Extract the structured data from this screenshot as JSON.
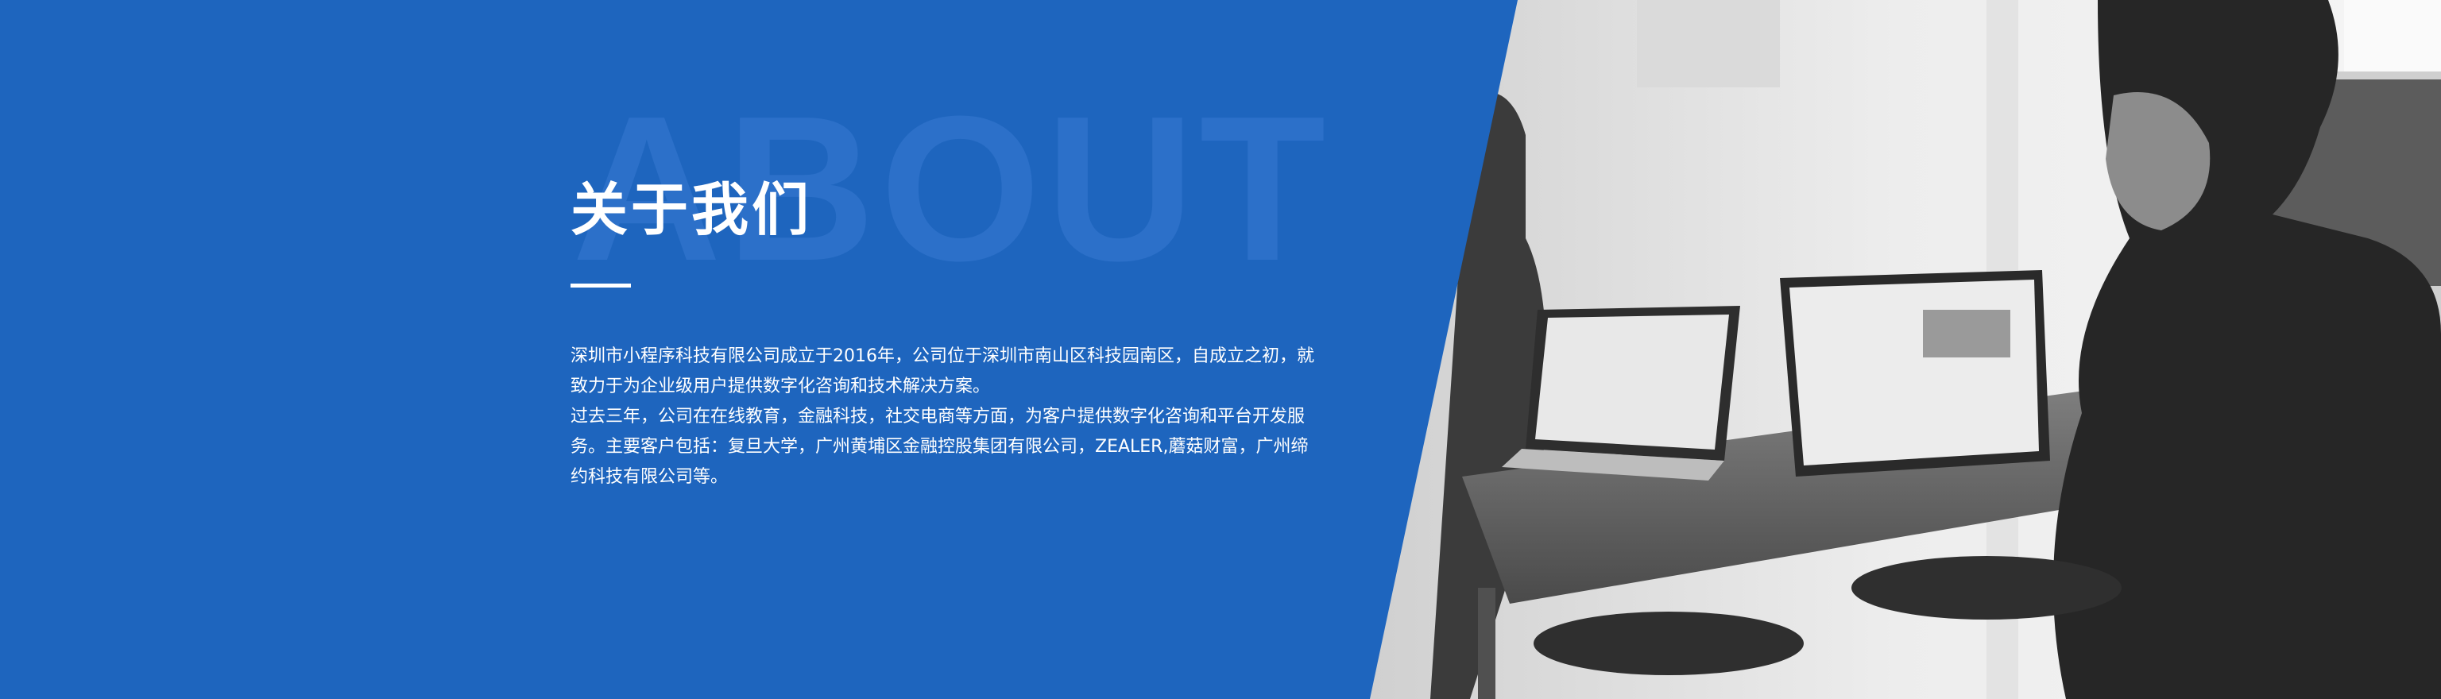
{
  "about": {
    "watermark": "ABOUT",
    "title": "关于我们",
    "paragraphs": [
      "深圳市小程序科技有限公司成立于2016年，公司位于深圳市南山区科技园南区，自成立之初，就致力于为企业级用户提供数字化咨询和技术解决方案。",
      "过去三年，公司在在线教育，金融科技，社交电商等方面，为客户提供数字化咨询和平台开发服务。主要客户包括：复旦大学，广州黄埔区金融控股集团有限公司，ZEALER,蘑菇财富，广州缔约科技有限公司等。"
    ]
  },
  "colors": {
    "panel_blue": "#1E65BE",
    "watermark_blue": "#3A7AD2",
    "text_white": "#FFFFFF"
  },
  "photo": {
    "subject": "office-team-laptops-photo"
  }
}
